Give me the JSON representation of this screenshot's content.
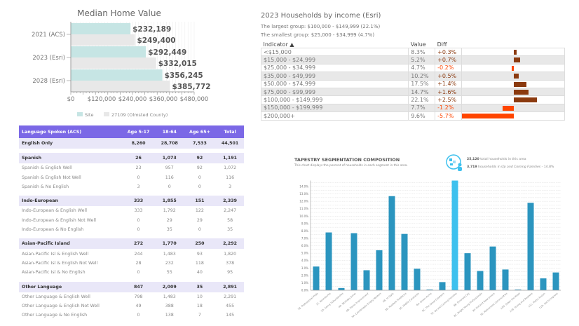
{
  "median_home_value": {
    "title": "Median Home Value",
    "chart_data": {
      "type": "bar",
      "orientation": "horizontal",
      "title": "Median Home Value",
      "categories": [
        "2021 (ACS)",
        "2023 (Esri)",
        "2028 (Esri)"
      ],
      "series": [
        {
          "name": "Site",
          "values": [
            232189,
            292449,
            356245
          ],
          "labels": [
            "$232,189",
            "$292,449",
            "$356,245"
          ],
          "color": "#c6e5e4"
        },
        {
          "name": "27109 (Olmsted County)",
          "values": [
            249400,
            332015,
            385772
          ],
          "labels": [
            "$249,400",
            "$332,015",
            "$385,772"
          ],
          "color": "#e8e8e8"
        }
      ],
      "xlim": [
        0,
        480000
      ],
      "xticks": [
        "$0",
        "$120,000",
        "$240,000",
        "$360,000",
        "$480,000"
      ],
      "legend": "bottom",
      "grid": true
    }
  },
  "income": {
    "title": "2023 Households by income (Esri)",
    "largest": "The largest group: $100,000 - $149,999 (22.1%)",
    "smallest": "The smallest group: $25,000 - $34,999 (4.7%)",
    "columns": [
      "Indicator ▲",
      "Value",
      "Diff"
    ],
    "colors": {
      "positive": "#8b3a0f",
      "negative": "#ff4500"
    },
    "rows": [
      {
        "indicator": "<$15,000",
        "value": "8.3%",
        "diff": "+0.3%",
        "d": 0.3
      },
      {
        "indicator": "$15,000 - $24,999",
        "value": "5.2%",
        "diff": "+0.7%",
        "d": 0.7
      },
      {
        "indicator": "$25,000 - $34,999",
        "value": "4.7%",
        "diff": "-0.2%",
        "d": -0.2
      },
      {
        "indicator": "$35,000 - $49,999",
        "value": "10.2%",
        "diff": "+0.5%",
        "d": 0.5
      },
      {
        "indicator": "$50,000 - $74,999",
        "value": "17.5%",
        "diff": "+1.4%",
        "d": 1.4
      },
      {
        "indicator": "$75,000 - $99,999",
        "value": "14.7%",
        "diff": "+1.6%",
        "d": 1.6
      },
      {
        "indicator": "$100,000 - $149,999",
        "value": "22.1%",
        "diff": "+2.5%",
        "d": 2.5
      },
      {
        "indicator": "$150,000 - $199,999",
        "value": "7.7%",
        "diff": "-1.2%",
        "d": -1.2
      },
      {
        "indicator": "$200,000+",
        "value": "9.6%",
        "diff": "-5.7%",
        "d": -5.7
      }
    ]
  },
  "language": {
    "headers": [
      "Language Spoken (ACS)",
      "Age 5-17",
      "18-64",
      "Age 65+",
      "Total"
    ],
    "groups": [
      {
        "rows": [
          [
            "English Only",
            "8,260",
            "28,708",
            "7,533",
            "44,501"
          ]
        ]
      },
      {
        "rows": [
          [
            "Spanish",
            "26",
            "1,073",
            "92",
            "1,191"
          ],
          [
            "Spanish & English Well",
            "23",
            "957",
            "92",
            "1,072"
          ],
          [
            "Spanish & English Not Well",
            "0",
            "116",
            "0",
            "116"
          ],
          [
            "Spanish & No English",
            "3",
            "0",
            "0",
            "3"
          ]
        ]
      },
      {
        "rows": [
          [
            "Indo-European",
            "333",
            "1,855",
            "151",
            "2,339"
          ],
          [
            "Indo-European & English Well",
            "333",
            "1,792",
            "122",
            "2,247"
          ],
          [
            "Indo-European & English Not Well",
            "0",
            "29",
            "29",
            "58"
          ],
          [
            "Indo-European & No English",
            "0",
            "35",
            "0",
            "35"
          ]
        ]
      },
      {
        "rows": [
          [
            "Asian-Pacific Island",
            "272",
            "1,770",
            "250",
            "2,292"
          ],
          [
            "Asian-Pacific Isl & English Well",
            "244",
            "1,483",
            "93",
            "1,820"
          ],
          [
            "Asian-Pacific Isl & English Not Well",
            "28",
            "232",
            "118",
            "378"
          ],
          [
            "Asian-Pacific Isl & No English",
            "0",
            "55",
            "40",
            "95"
          ]
        ]
      },
      {
        "rows": [
          [
            "Other Language",
            "847",
            "2,009",
            "35",
            "2,891"
          ],
          [
            "Other Language & English Well",
            "798",
            "1,483",
            "10",
            "2,291"
          ],
          [
            "Other Language & English Not Well",
            "49",
            "388",
            "18",
            "455"
          ],
          [
            "Other Language & No English",
            "0",
            "138",
            "7",
            "145"
          ]
        ]
      }
    ]
  },
  "tapestry": {
    "title": "TAPESTRY SEGMENTATION COMPOSITION",
    "subtitle": "This chart displays the percent of households in each segment in this area.",
    "total_households": "25,120",
    "total_text": "total households in this area",
    "segment_households": "3,719",
    "segment_text_pre": "households in",
    "segment_name": "Up and Coming Families",
    "segment_pct": "- 14.8%",
    "icon": "globe-person-icon",
    "chart_data": {
      "type": "bar",
      "title": "TAPESTRY SEGMENTATION COMPOSITION",
      "categories": [
        "1B. Professional Pride",
        "1C. Boomburbs",
        "1D. Savvy Suburbanites",
        "4A. Workday Drive",
        "4B. Home Improvement",
        "5A. Comfortable Empty Nesters",
        "5B. In Style",
        "5D. Rustbelt Traditions",
        "5E. Midlife Constants",
        "6A. Green Acres",
        "6C. The Great Outdoors",
        "7A. Up and Coming Families",
        "8B. Emerald City",
        "8C. Bright Young Professionals",
        "8F. Old and Newcomers",
        "9E. Retirement Communities",
        "10D. Down the Road",
        "11B. Young and Restless",
        "11C. Metro Fusion",
        "11D. Set to Impress"
      ],
      "values": [
        3.2,
        7.8,
        0.3,
        7.7,
        2.7,
        5.4,
        12.7,
        7.6,
        2.9,
        0.1,
        1.1,
        14.8,
        5.0,
        2.6,
        5.9,
        2.8,
        0.1,
        11.8,
        1.6,
        2.4
      ],
      "highlight": "7A. Up and Coming Families",
      "colors": {
        "bar": "#2b95bf",
        "highlight": "#3ec1ee"
      },
      "ylim": [
        0,
        14.8
      ],
      "yticks": [
        "0.0%",
        "1.0%",
        "2.0%",
        "3.0%",
        "4.0%",
        "5.0%",
        "6.0%",
        "7.0%",
        "8.0%",
        "9.0%",
        "10.0%",
        "11.0%",
        "12.0%",
        "13.0%",
        "14.0%"
      ],
      "grid": true
    }
  }
}
